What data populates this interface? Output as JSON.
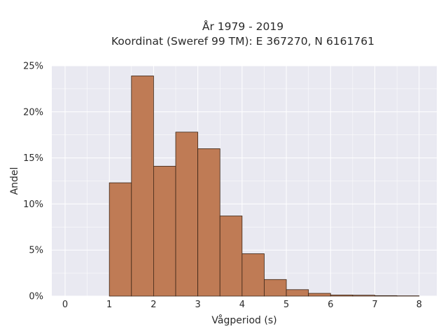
{
  "title": {
    "line1": "År 1979 - 2019",
    "line2": "Koordinat (Sweref 99 TM): E 367270, N 6161761"
  },
  "chart_data": {
    "type": "bar",
    "subtype": "histogram",
    "title": "År 1979 - 2019 / Koordinat (Sweref 99 TM): E 367270, N 6161761",
    "xlabel": "Vågperiod (s)",
    "ylabel": "Andel",
    "xlim": [
      -0.3,
      8.4
    ],
    "ylim": [
      0,
      25
    ],
    "x_ticks": [
      0,
      1,
      2,
      3,
      4,
      5,
      6,
      7,
      8
    ],
    "y_ticks": [
      0,
      5,
      10,
      15,
      20,
      25
    ],
    "y_tick_labels": [
      "0%",
      "5%",
      "10%",
      "15%",
      "20%",
      "25%"
    ],
    "bin_width": 0.5,
    "bins": [
      {
        "start": 1.0,
        "end": 1.5,
        "value": 12.3
      },
      {
        "start": 1.5,
        "end": 2.0,
        "value": 23.9
      },
      {
        "start": 2.0,
        "end": 2.5,
        "value": 14.1
      },
      {
        "start": 2.5,
        "end": 3.0,
        "value": 17.8
      },
      {
        "start": 3.0,
        "end": 3.5,
        "value": 16.0
      },
      {
        "start": 3.5,
        "end": 4.0,
        "value": 8.7
      },
      {
        "start": 4.0,
        "end": 4.5,
        "value": 4.6
      },
      {
        "start": 4.5,
        "end": 5.0,
        "value": 1.8
      },
      {
        "start": 5.0,
        "end": 5.5,
        "value": 0.7
      },
      {
        "start": 5.5,
        "end": 6.0,
        "value": 0.3
      },
      {
        "start": 6.0,
        "end": 6.5,
        "value": 0.12
      },
      {
        "start": 6.5,
        "end": 7.0,
        "value": 0.1
      },
      {
        "start": 7.0,
        "end": 7.5,
        "value": 0.05
      },
      {
        "start": 7.5,
        "end": 8.0,
        "value": 0.03
      }
    ],
    "grid": true,
    "colors": {
      "bar_fill": "#bf7b55",
      "bar_edge": "#3b2516",
      "plot_background": "#e9e9f1",
      "grid": "#ffffff"
    }
  }
}
